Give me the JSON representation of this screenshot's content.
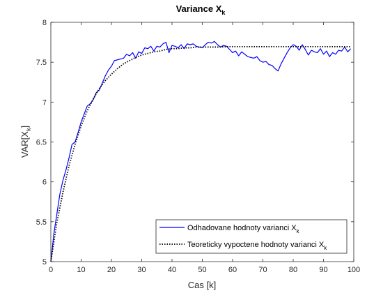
{
  "chart_data": {
    "type": "line",
    "title": "Variance X",
    "title_sub": "k",
    "xlabel": "Cas [k]",
    "ylabel": "VAR[X",
    "ylabel_sub": "k",
    "ylabel_end": "]",
    "xlim": [
      0,
      100
    ],
    "ylim": [
      5,
      8
    ],
    "xticks": [
      0,
      10,
      20,
      30,
      40,
      50,
      60,
      70,
      80,
      90,
      100
    ],
    "yticks": [
      5,
      5.5,
      6,
      6.5,
      7,
      7.5,
      8
    ],
    "xtick_labels": [
      "0",
      "10",
      "20",
      "30",
      "40",
      "50",
      "60",
      "70",
      "80",
      "90",
      "100"
    ],
    "ytick_labels": [
      "5",
      "5.5",
      "6",
      "6.5",
      "7",
      "7.5",
      "8"
    ],
    "grid": false,
    "legend_position": "bottom-right",
    "series": [
      {
        "name": "Odhadovane hodnoty varianci X",
        "name_sub": "k",
        "color": "#0000ff",
        "style": "solid",
        "x": [
          0,
          1,
          2,
          3,
          4,
          5,
          6,
          7,
          8,
          9,
          10,
          11,
          12,
          13,
          14,
          15,
          16,
          17,
          18,
          19,
          20,
          21,
          22,
          23,
          24,
          25,
          26,
          27,
          28,
          29,
          30,
          31,
          32,
          33,
          34,
          35,
          36,
          37,
          38,
          39,
          40,
          41,
          42,
          43,
          44,
          45,
          46,
          47,
          48,
          49,
          50,
          51,
          52,
          53,
          54,
          55,
          56,
          57,
          58,
          59,
          60,
          61,
          62,
          63,
          64,
          65,
          66,
          67,
          68,
          69,
          70,
          71,
          72,
          73,
          74,
          75,
          76,
          77,
          78,
          79,
          80,
          81,
          82,
          83,
          84,
          85,
          86,
          87,
          88,
          89,
          90,
          91,
          92,
          93,
          94,
          95,
          96,
          97,
          98,
          99
        ],
        "values": [
          5.0,
          5.35,
          5.6,
          5.85,
          6.02,
          6.15,
          6.3,
          6.47,
          6.5,
          6.62,
          6.75,
          6.85,
          6.95,
          6.98,
          7.03,
          7.12,
          7.15,
          7.24,
          7.33,
          7.4,
          7.45,
          7.52,
          7.53,
          7.54,
          7.55,
          7.6,
          7.58,
          7.62,
          7.55,
          7.63,
          7.61,
          7.68,
          7.67,
          7.7,
          7.64,
          7.7,
          7.69,
          7.73,
          7.75,
          7.62,
          7.71,
          7.7,
          7.68,
          7.72,
          7.67,
          7.73,
          7.72,
          7.73,
          7.7,
          7.69,
          7.68,
          7.72,
          7.75,
          7.74,
          7.76,
          7.72,
          7.69,
          7.71,
          7.7,
          7.66,
          7.62,
          7.64,
          7.58,
          7.63,
          7.6,
          7.57,
          7.56,
          7.55,
          7.57,
          7.52,
          7.5,
          7.51,
          7.47,
          7.46,
          7.42,
          7.39,
          7.48,
          7.55,
          7.62,
          7.68,
          7.72,
          7.7,
          7.65,
          7.72,
          7.66,
          7.59,
          7.65,
          7.63,
          7.62,
          7.67,
          7.6,
          7.64,
          7.57,
          7.62,
          7.6,
          7.65,
          7.64,
          7.69,
          7.63,
          7.67
        ]
      },
      {
        "name": "Teoreticky vypoctene hodnoty varianci X",
        "name_sub": "k",
        "color": "#000000",
        "style": "dotted",
        "x": [
          0,
          2,
          4,
          6,
          8,
          10,
          12,
          14,
          16,
          18,
          20,
          22,
          24,
          26,
          28,
          30,
          32,
          34,
          36,
          38,
          40,
          42,
          44,
          46,
          48,
          50,
          52,
          54,
          56,
          58,
          60,
          65,
          70,
          75,
          80,
          85,
          90,
          95,
          99
        ],
        "values": [
          5.0,
          5.49,
          5.87,
          6.2,
          6.47,
          6.7,
          6.89,
          7.04,
          7.17,
          7.27,
          7.35,
          7.42,
          7.48,
          7.52,
          7.56,
          7.59,
          7.61,
          7.63,
          7.64,
          7.66,
          7.67,
          7.67,
          7.68,
          7.68,
          7.69,
          7.69,
          7.69,
          7.69,
          7.69,
          7.695,
          7.695,
          7.695,
          7.695,
          7.695,
          7.695,
          7.695,
          7.695,
          7.695,
          7.695
        ]
      }
    ]
  }
}
